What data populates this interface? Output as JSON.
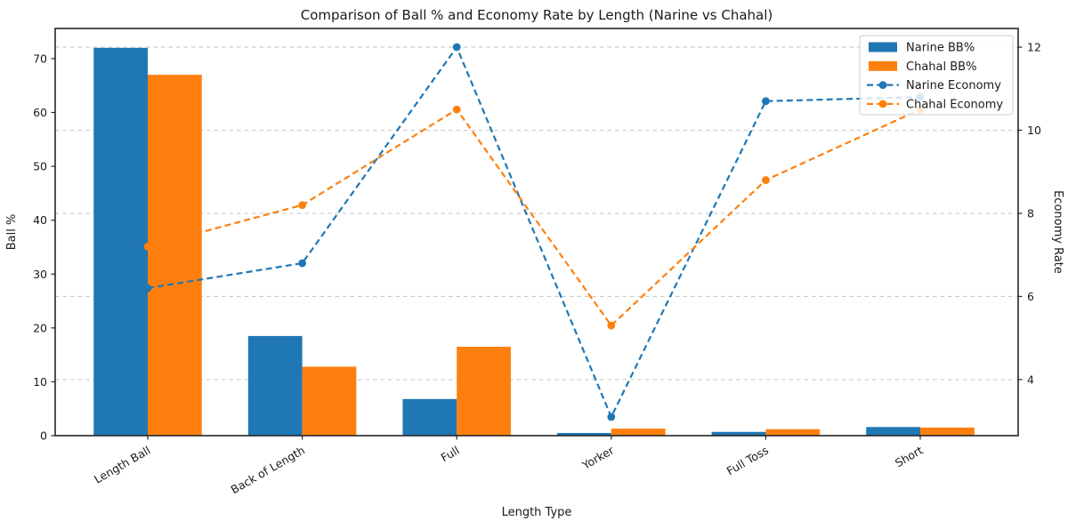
{
  "chart_data": {
    "type": "bar",
    "subtype": "grouped-bars-with-dual-axis-lines",
    "title": "Comparison of Ball % and Economy Rate by Length (Narine vs Chahal)",
    "xlabel": "Length Type",
    "ylabel_left": "Ball %",
    "ylabel_right": "Economy Rate",
    "categories": [
      "Length Ball",
      "Back of Length",
      "Full",
      "Yorker",
      "Full Toss",
      "Short"
    ],
    "series": [
      {
        "name": "Narine BB%",
        "kind": "bar",
        "axis": "left",
        "color": "#1f77b4",
        "values": [
          72,
          18.5,
          6.8,
          0.5,
          0.7,
          1.6
        ]
      },
      {
        "name": "Chahal BB%",
        "kind": "bar",
        "axis": "left",
        "color": "#ff7f0e",
        "values": [
          67,
          12.8,
          16.5,
          1.3,
          1.2,
          1.5
        ]
      },
      {
        "name": "Narine Economy",
        "kind": "line",
        "axis": "right",
        "color": "#1f77b4",
        "values": [
          6.2,
          6.8,
          12.0,
          3.1,
          10.7,
          10.8
        ]
      },
      {
        "name": "Chahal Economy",
        "kind": "line",
        "axis": "right",
        "color": "#ff7f0e",
        "values": [
          7.2,
          8.2,
          10.5,
          5.3,
          8.8,
          10.5
        ]
      }
    ],
    "ylim_left": [
      0,
      75.6
    ],
    "ylim_right": [
      2.65,
      12.45
    ],
    "yticks_left": [
      0,
      10,
      20,
      30,
      40,
      50,
      60,
      70
    ],
    "yticks_right": [
      4,
      6,
      8,
      10,
      12
    ],
    "grid": {
      "axis": "right",
      "orientation": "horizontal",
      "style": "dashed",
      "color": "#c9c9c9"
    },
    "legend": {
      "position": "upper-right",
      "entries": [
        "Narine BB%",
        "Chahal BB%",
        "Narine Economy",
        "Chahal Economy"
      ]
    },
    "styles": {
      "bar_width_ratio": 0.35,
      "line_style": "dashed",
      "marker": "circle",
      "spine_color": "#262626",
      "text_color": "#1a1a1a"
    }
  }
}
